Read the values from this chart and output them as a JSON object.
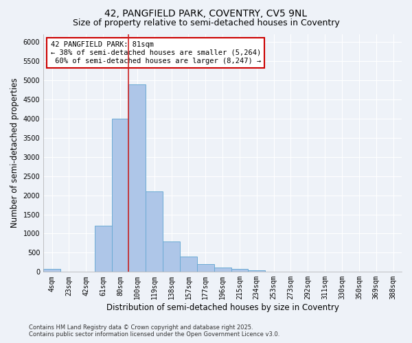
{
  "title_line1": "42, PANGFIELD PARK, COVENTRY, CV5 9NL",
  "title_line2": "Size of property relative to semi-detached houses in Coventry",
  "xlabel": "Distribution of semi-detached houses by size in Coventry",
  "ylabel": "Number of semi-detached properties",
  "footnote": "Contains HM Land Registry data © Crown copyright and database right 2025.\nContains public sector information licensed under the Open Government Licence v3.0.",
  "categories": [
    "4sqm",
    "23sqm",
    "42sqm",
    "61sqm",
    "80sqm",
    "100sqm",
    "119sqm",
    "138sqm",
    "157sqm",
    "177sqm",
    "196sqm",
    "215sqm",
    "234sqm",
    "253sqm",
    "273sqm",
    "292sqm",
    "311sqm",
    "330sqm",
    "350sqm",
    "369sqm",
    "388sqm"
  ],
  "values": [
    80,
    0,
    0,
    1200,
    4000,
    4900,
    2100,
    800,
    400,
    200,
    120,
    80,
    50,
    0,
    0,
    0,
    0,
    0,
    0,
    0,
    0
  ],
  "bar_color": "#aec6e8",
  "bar_edge_color": "#6aaad4",
  "annotation_text": "42 PANGFIELD PARK: 81sqm\n← 38% of semi-detached houses are smaller (5,264)\n 60% of semi-detached houses are larger (8,247) →",
  "annotation_box_color": "#ffffff",
  "annotation_box_edge": "#cc0000",
  "ylim": [
    0,
    6200
  ],
  "yticks": [
    0,
    500,
    1000,
    1500,
    2000,
    2500,
    3000,
    3500,
    4000,
    4500,
    5000,
    5500,
    6000
  ],
  "bg_color": "#eef2f8",
  "grid_color": "#ffffff",
  "vline_color": "#cc2222",
  "title_fontsize": 10,
  "subtitle_fontsize": 9,
  "label_fontsize": 8.5,
  "tick_fontsize": 7,
  "annotation_fontsize": 7.5,
  "footnote_fontsize": 6,
  "property_bin_index": 4
}
